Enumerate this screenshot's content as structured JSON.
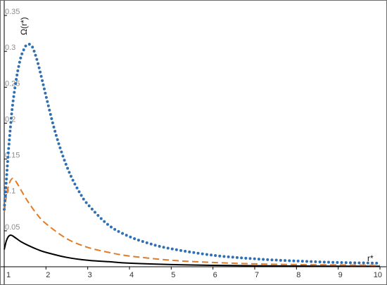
{
  "chart_data": {
    "type": "line",
    "xlabel": "r*",
    "ylabel": "Ω(r*)",
    "xlim": [
      1,
      10
    ],
    "ylim": [
      0,
      0.35
    ],
    "x_ticks": [
      "1",
      "2",
      "3",
      "4",
      "5",
      "6",
      "7",
      "8",
      "9",
      "10"
    ],
    "y_ticks": [
      "0.05",
      "0.1",
      "0.15",
      "0.2",
      "0.25",
      "0.3",
      "0.35"
    ],
    "grid": false,
    "legend": "none",
    "series": [
      {
        "style": "solid",
        "color": "#000000",
        "x": [
          1.0,
          1.05,
          1.1,
          1.15,
          1.2,
          1.3,
          1.4,
          1.6,
          1.8,
          2.0,
          2.5,
          3.0,
          3.5,
          4.0,
          5.0,
          6.0,
          7.0,
          8.0,
          9.0,
          10.0
        ],
        "y": [
          0.024,
          0.036,
          0.042,
          0.044,
          0.043,
          0.039,
          0.035,
          0.029,
          0.024,
          0.02,
          0.013,
          0.009,
          0.007,
          0.005,
          0.003,
          0.002,
          0.0014,
          0.001,
          0.0008,
          0.0006
        ]
      },
      {
        "style": "dashed",
        "color": "#e07b28",
        "x": [
          1.0,
          1.05,
          1.1,
          1.15,
          1.2,
          1.25,
          1.3,
          1.4,
          1.5,
          1.6,
          1.8,
          2.0,
          2.5,
          3.0,
          3.5,
          4.0,
          5.0,
          6.0,
          7.0,
          8.0,
          9.0,
          10.0
        ],
        "y": [
          0.076,
          0.098,
          0.112,
          0.12,
          0.123,
          0.121,
          0.117,
          0.107,
          0.097,
          0.088,
          0.072,
          0.06,
          0.039,
          0.027,
          0.02,
          0.015,
          0.009,
          0.006,
          0.004,
          0.003,
          0.0025,
          0.002
        ]
      },
      {
        "style": "dotted",
        "color": "#2f6fb3",
        "x": [
          1.0,
          1.05,
          1.1,
          1.15,
          1.2,
          1.3,
          1.4,
          1.5,
          1.55,
          1.6,
          1.65,
          1.7,
          1.8,
          1.9,
          2.0,
          2.2,
          2.4,
          2.6,
          2.8,
          3.0,
          3.5,
          4.0,
          4.5,
          5.0,
          6.0,
          7.0,
          8.0,
          9.0,
          10.0
        ],
        "y": [
          0.08,
          0.12,
          0.16,
          0.195,
          0.225,
          0.265,
          0.292,
          0.306,
          0.309,
          0.31,
          0.308,
          0.303,
          0.285,
          0.262,
          0.238,
          0.192,
          0.155,
          0.126,
          0.104,
          0.087,
          0.058,
          0.042,
          0.032,
          0.025,
          0.016,
          0.011,
          0.008,
          0.006,
          0.005
        ]
      }
    ]
  }
}
